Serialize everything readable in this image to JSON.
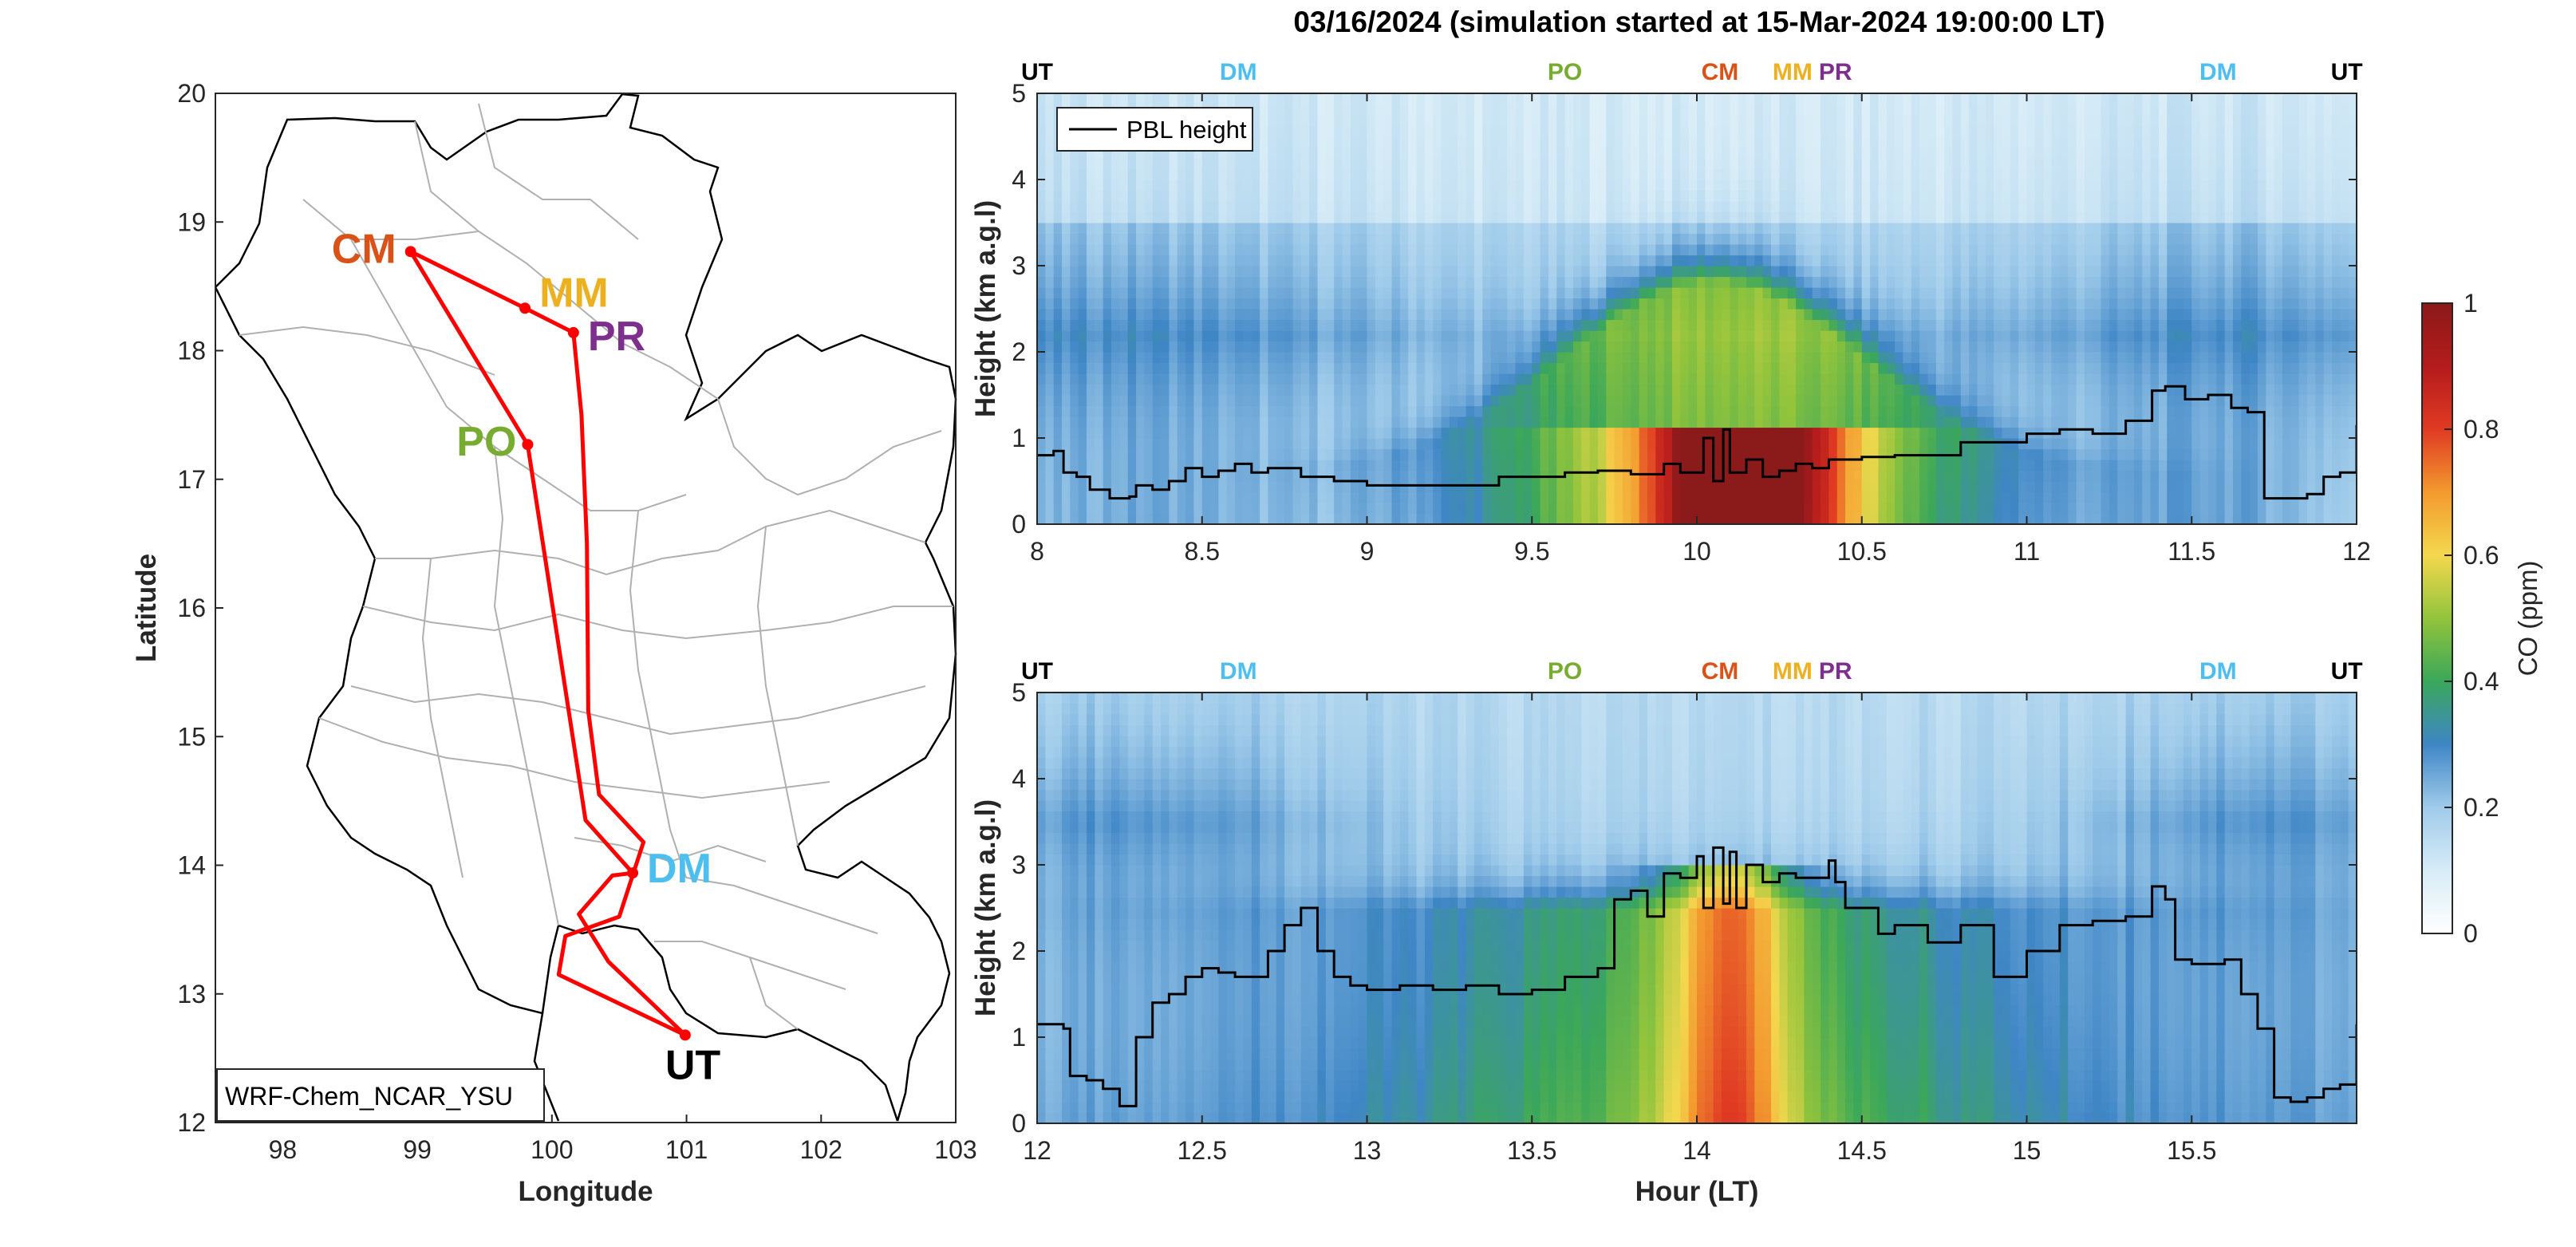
{
  "figure": {
    "title": "03/16/2024 (simulation started at 15-Mar-2024 19:00:00 LT)"
  },
  "colors": {
    "CM": "#D95319",
    "MM": "#EDB120",
    "PR": "#7E2F8E",
    "PO": "#77AC30",
    "DM": "#4DBEEE",
    "UT": "#000000",
    "track": "#FF0000"
  },
  "chart_data": [
    {
      "type": "scatter",
      "subtype": "map",
      "xlabel": "Longitude",
      "ylabel": "Latitude",
      "xlim": [
        97.5,
        103
      ],
      "ylim": [
        12,
        20
      ],
      "xticks": [
        98,
        99,
        100,
        101,
        102,
        103
      ],
      "yticks": [
        12,
        13,
        14,
        15,
        16,
        17,
        18,
        19,
        20
      ],
      "model_label": "WRF-Chem_NCAR_YSU",
      "stations": [
        {
          "code": "CM",
          "lon": 98.95,
          "lat": 18.77
        },
        {
          "code": "MM",
          "lon": 99.8,
          "lat": 18.33
        },
        {
          "code": "PR",
          "lon": 100.16,
          "lat": 18.14
        },
        {
          "code": "PO",
          "lon": 99.82,
          "lat": 17.27
        },
        {
          "code": "DM",
          "lon": 100.6,
          "lat": 13.94
        },
        {
          "code": "UT",
          "lon": 100.99,
          "lat": 12.68
        }
      ],
      "track": [
        [
          100.99,
          12.68
        ],
        [
          100.42,
          13.25
        ],
        [
          100.2,
          13.62
        ],
        [
          100.45,
          13.92
        ],
        [
          100.6,
          13.94
        ],
        [
          100.25,
          14.35
        ],
        [
          99.82,
          17.27
        ],
        [
          98.95,
          18.77
        ],
        [
          99.8,
          18.33
        ],
        [
          100.16,
          18.14
        ],
        [
          100.22,
          17.5
        ],
        [
          100.26,
          16.5
        ],
        [
          100.27,
          15.2
        ],
        [
          100.35,
          14.55
        ],
        [
          100.68,
          14.18
        ],
        [
          100.5,
          13.6
        ],
        [
          100.1,
          13.45
        ],
        [
          100.05,
          13.15
        ],
        [
          100.99,
          12.68
        ]
      ]
    },
    {
      "type": "heatmap",
      "ylabel": "Height (km a.g.l)",
      "xlim": [
        8,
        12
      ],
      "ylim": [
        0,
        5
      ],
      "xticks": [
        8,
        8.5,
        9,
        9.5,
        10,
        10.5,
        11,
        11.5,
        12
      ],
      "yticks": [
        0,
        1,
        2,
        3,
        4,
        5
      ],
      "legend": "PBL height",
      "legend_position": "top-left",
      "station_markers": [
        {
          "code": "UT",
          "x": 8.0
        },
        {
          "code": "DM",
          "x": 8.61
        },
        {
          "code": "PO",
          "x": 9.6
        },
        {
          "code": "CM",
          "x": 10.07
        },
        {
          "code": "MM",
          "x": 10.29
        },
        {
          "code": "PR",
          "x": 10.42
        },
        {
          "code": "DM",
          "x": 11.58
        },
        {
          "code": "UT",
          "x": 11.97
        }
      ],
      "pbl_height": {
        "x": [
          8.0,
          8.05,
          8.08,
          8.12,
          8.16,
          8.22,
          8.28,
          8.3,
          8.35,
          8.4,
          8.45,
          8.5,
          8.55,
          8.6,
          8.65,
          8.7,
          8.8,
          8.9,
          9.0,
          9.2,
          9.4,
          9.6,
          9.7,
          9.8,
          9.9,
          9.95,
          10.0,
          10.02,
          10.05,
          10.08,
          10.1,
          10.15,
          10.2,
          10.25,
          10.3,
          10.35,
          10.4,
          10.5,
          10.6,
          10.8,
          11.0,
          11.1,
          11.2,
          11.3,
          11.38,
          11.42,
          11.48,
          11.55,
          11.62,
          11.67,
          11.72,
          11.78,
          11.85,
          11.9,
          11.95,
          12.0
        ],
        "y": [
          0.8,
          0.85,
          0.6,
          0.55,
          0.4,
          0.3,
          0.32,
          0.45,
          0.4,
          0.5,
          0.65,
          0.55,
          0.62,
          0.7,
          0.6,
          0.65,
          0.55,
          0.5,
          0.45,
          0.45,
          0.55,
          0.6,
          0.62,
          0.58,
          0.7,
          0.6,
          0.6,
          1.0,
          0.5,
          1.1,
          0.6,
          0.75,
          0.55,
          0.62,
          0.7,
          0.65,
          0.75,
          0.78,
          0.8,
          0.95,
          1.05,
          1.1,
          1.05,
          1.2,
          1.55,
          1.6,
          1.45,
          1.5,
          1.35,
          1.3,
          0.3,
          0.3,
          0.35,
          0.55,
          0.6,
          1.15
        ]
      }
    },
    {
      "type": "heatmap",
      "xlabel": "Hour (LT)",
      "ylabel": "Height (km a.g.l)",
      "xlim": [
        12,
        16
      ],
      "ylim": [
        0,
        5
      ],
      "xticks": [
        12,
        12.5,
        13,
        13.5,
        14,
        14.5,
        15,
        15.5
      ],
      "yticks": [
        0,
        1,
        2,
        3,
        4,
        5
      ],
      "station_markers": [
        {
          "code": "UT",
          "x": 12.0
        },
        {
          "code": "DM",
          "x": 12.61
        },
        {
          "code": "PO",
          "x": 13.6
        },
        {
          "code": "CM",
          "x": 14.07
        },
        {
          "code": "MM",
          "x": 14.29
        },
        {
          "code": "PR",
          "x": 14.42
        },
        {
          "code": "DM",
          "x": 15.58
        },
        {
          "code": "UT",
          "x": 15.97
        }
      ],
      "pbl_height": {
        "x": [
          12.0,
          12.08,
          12.1,
          12.15,
          12.2,
          12.25,
          12.3,
          12.35,
          12.4,
          12.45,
          12.5,
          12.55,
          12.6,
          12.7,
          12.75,
          12.8,
          12.85,
          12.9,
          12.95,
          13.0,
          13.1,
          13.2,
          13.3,
          13.4,
          13.5,
          13.6,
          13.7,
          13.75,
          13.8,
          13.85,
          13.9,
          13.95,
          14.0,
          14.02,
          14.05,
          14.08,
          14.1,
          14.12,
          14.15,
          14.2,
          14.25,
          14.3,
          14.35,
          14.4,
          14.42,
          14.45,
          14.5,
          14.55,
          14.6,
          14.7,
          14.8,
          14.9,
          15.0,
          15.1,
          15.2,
          15.3,
          15.38,
          15.42,
          15.45,
          15.5,
          15.6,
          15.65,
          15.7,
          15.75,
          15.8,
          15.85,
          15.9,
          15.95,
          16.0
        ],
        "y": [
          1.15,
          1.1,
          0.55,
          0.5,
          0.4,
          0.2,
          1.0,
          1.4,
          1.5,
          1.7,
          1.8,
          1.75,
          1.7,
          2.0,
          2.3,
          2.5,
          2.0,
          1.7,
          1.6,
          1.55,
          1.6,
          1.55,
          1.6,
          1.5,
          1.55,
          1.7,
          1.8,
          2.6,
          2.7,
          2.4,
          2.9,
          2.85,
          3.1,
          2.5,
          3.2,
          2.55,
          3.15,
          2.5,
          3.0,
          2.8,
          2.9,
          2.85,
          2.85,
          3.05,
          2.8,
          2.5,
          2.5,
          2.2,
          2.3,
          2.1,
          2.3,
          1.7,
          2.0,
          2.3,
          2.35,
          2.4,
          2.75,
          2.6,
          1.9,
          1.85,
          1.9,
          1.5,
          1.1,
          0.3,
          0.25,
          0.3,
          0.4,
          0.45,
          1.15
        ]
      }
    }
  ],
  "colorbar": {
    "label": "CO (ppm)",
    "ticks": [
      0,
      0.2,
      0.4,
      0.6,
      0.8,
      1
    ],
    "range": [
      0,
      1
    ]
  }
}
